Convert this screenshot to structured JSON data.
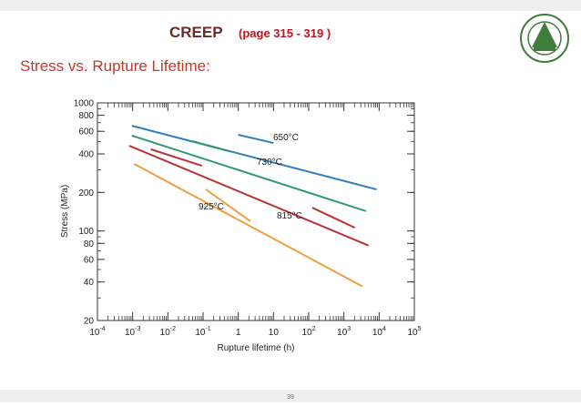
{
  "slide": {
    "title": "CREEP",
    "title_note": "(page 315 - 319 )",
    "subtitle": "Stress vs. Rupture Lifetime:",
    "page_number": "39"
  },
  "chart_data": {
    "type": "line",
    "xlabel": "Rupture lifetime (h)",
    "ylabel": "Stress (MPa)",
    "xscale": "log",
    "yscale": "log",
    "xlim": [
      0.0001,
      100000
    ],
    "ylim": [
      20,
      1000
    ],
    "xticks": [
      {
        "value": 0.0001,
        "label": "10-4"
      },
      {
        "value": 0.001,
        "label": "10-3"
      },
      {
        "value": 0.01,
        "label": "10-2"
      },
      {
        "value": 0.1,
        "label": "10-1"
      },
      1,
      10,
      {
        "value": 100,
        "label": "102"
      },
      {
        "value": 1000,
        "label": "103"
      },
      {
        "value": 10000,
        "label": "104"
      },
      {
        "value": 100000,
        "label": "105"
      }
    ],
    "yticks": [
      20,
      40,
      60,
      80,
      100,
      200,
      400,
      600,
      800,
      1000
    ],
    "series": [
      {
        "name": "650°C",
        "color": "#2f7fc1",
        "x": [
          0.00095,
          8500,
          null,
          1,
          10
        ],
        "values": [
          663,
          211,
          null,
          564,
          486
        ]
      },
      {
        "name": "730°C",
        "color": "#2e9a6a",
        "x": [
          0.00095,
          4200,
          null,
          0.05,
          0.59
        ],
        "values": [
          555,
          143,
          null,
          502,
          418
        ]
      },
      {
        "name": "815°C",
        "color": "#b8323a",
        "x": [
          0.0008,
          5000,
          null,
          0.0033,
          0.093,
          null,
          126,
          2040
        ],
        "values": [
          463,
          77,
          null,
          434,
          323,
          null,
          152,
          106
        ]
      },
      {
        "name": "925°C",
        "color": "#f0a040",
        "x": [
          0.0011,
          3300,
          null,
          0.12,
          2.2
        ],
        "values": [
          334,
          37,
          null,
          211,
          119
        ]
      }
    ]
  }
}
